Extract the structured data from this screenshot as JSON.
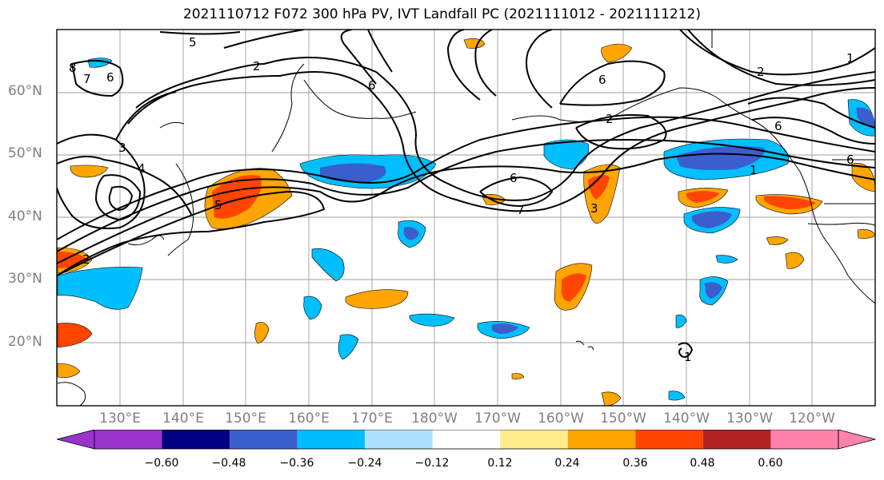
{
  "title": "2021110712 F072 300 hPa PV, IVT Landfall PC (2021111012 - 2021111212)",
  "lat_labels": [
    "60°N",
    "50°N",
    "40°N",
    "30°N",
    "20°N"
  ],
  "lon_labels": [
    "130°E",
    "140°E",
    "150°E",
    "160°E",
    "170°E",
    "180°W",
    "170°W",
    "160°W",
    "150°W",
    "140°W",
    "130°W",
    "120°W"
  ],
  "colorbar": {
    "colors": [
      "#9933cc",
      "#000080",
      "#3a5fcd",
      "#00bfff",
      "#b0e2ff",
      "#ffffff",
      "#ffec8b",
      "#ffa500",
      "#ff4500",
      "#b22222",
      "#ff82ab"
    ],
    "tick_labels": [
      "−0.60",
      "−0.48",
      "−0.36",
      "−0.24",
      "−0.12",
      "0.12",
      "0.24",
      "0.36",
      "0.48",
      "0.60"
    ]
  },
  "contour_labels": [
    "5",
    "2",
    "3",
    "4",
    "6",
    "7",
    "8",
    "1"
  ]
}
